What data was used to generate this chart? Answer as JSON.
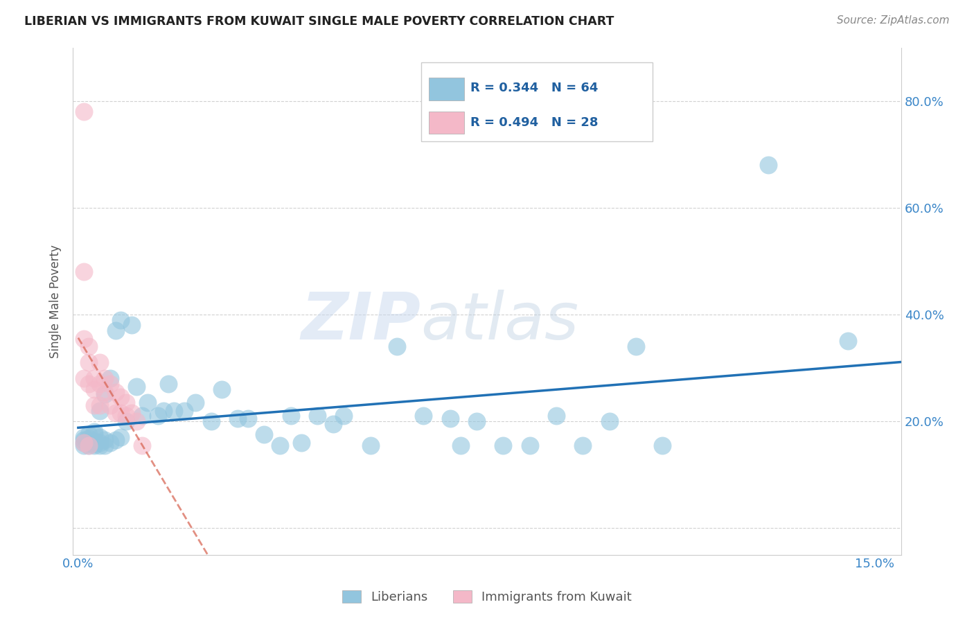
{
  "title": "LIBERIAN VS IMMIGRANTS FROM KUWAIT SINGLE MALE POVERTY CORRELATION CHART",
  "source": "Source: ZipAtlas.com",
  "ylabel": "Single Male Poverty",
  "y_ticks": [
    0.0,
    0.2,
    0.4,
    0.6,
    0.8
  ],
  "y_tick_labels": [
    "",
    "20.0%",
    "40.0%",
    "60.0%",
    "80.0%"
  ],
  "xlim": [
    -0.001,
    0.155
  ],
  "ylim": [
    -0.05,
    0.9
  ],
  "legend_label1": "Liberians",
  "legend_label2": "Immigrants from Kuwait",
  "R1": "0.344",
  "N1": "64",
  "R2": "0.494",
  "N2": "28",
  "color_blue": "#92c5de",
  "color_pink": "#f4b8c8",
  "trendline_blue": "#2171b5",
  "trendline_pink": "#d6604d",
  "watermark_zip": "ZIP",
  "watermark_atlas": "atlas",
  "liberians_x": [
    0.001,
    0.001,
    0.001,
    0.001,
    0.002,
    0.002,
    0.002,
    0.002,
    0.002,
    0.003,
    0.003,
    0.003,
    0.003,
    0.003,
    0.004,
    0.004,
    0.004,
    0.004,
    0.005,
    0.005,
    0.005,
    0.006,
    0.006,
    0.007,
    0.007,
    0.008,
    0.008,
    0.009,
    0.01,
    0.011,
    0.012,
    0.013,
    0.015,
    0.016,
    0.017,
    0.018,
    0.02,
    0.022,
    0.025,
    0.027,
    0.03,
    0.032,
    0.035,
    0.038,
    0.04,
    0.042,
    0.045,
    0.048,
    0.05,
    0.055,
    0.06,
    0.065,
    0.07,
    0.072,
    0.075,
    0.08,
    0.085,
    0.09,
    0.095,
    0.1,
    0.105,
    0.11,
    0.13,
    0.145
  ],
  "liberians_y": [
    0.155,
    0.16,
    0.165,
    0.17,
    0.155,
    0.158,
    0.162,
    0.168,
    0.175,
    0.155,
    0.157,
    0.162,
    0.175,
    0.18,
    0.155,
    0.16,
    0.17,
    0.22,
    0.155,
    0.165,
    0.25,
    0.16,
    0.28,
    0.165,
    0.37,
    0.17,
    0.39,
    0.2,
    0.38,
    0.265,
    0.21,
    0.235,
    0.21,
    0.22,
    0.27,
    0.22,
    0.22,
    0.235,
    0.2,
    0.26,
    0.205,
    0.205,
    0.175,
    0.155,
    0.21,
    0.16,
    0.21,
    0.195,
    0.21,
    0.155,
    0.34,
    0.21,
    0.205,
    0.155,
    0.2,
    0.155,
    0.155,
    0.21,
    0.155,
    0.2,
    0.34,
    0.155,
    0.68,
    0.35
  ],
  "kuwait_x": [
    0.001,
    0.001,
    0.001,
    0.001,
    0.001,
    0.002,
    0.002,
    0.002,
    0.002,
    0.003,
    0.003,
    0.003,
    0.004,
    0.004,
    0.004,
    0.005,
    0.005,
    0.006,
    0.006,
    0.007,
    0.007,
    0.008,
    0.008,
    0.009,
    0.009,
    0.01,
    0.011,
    0.012
  ],
  "kuwait_y": [
    0.78,
    0.48,
    0.355,
    0.28,
    0.16,
    0.34,
    0.31,
    0.27,
    0.155,
    0.28,
    0.26,
    0.23,
    0.31,
    0.27,
    0.23,
    0.28,
    0.255,
    0.27,
    0.23,
    0.255,
    0.215,
    0.245,
    0.215,
    0.235,
    0.21,
    0.215,
    0.2,
    0.155
  ]
}
